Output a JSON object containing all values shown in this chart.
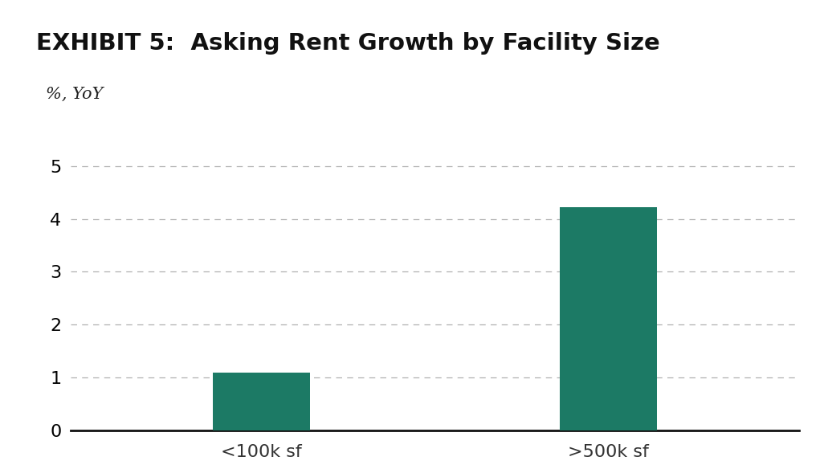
{
  "title": "EXHIBIT 5:  Asking Rent Growth by Facility Size",
  "ylabel": "%, YoY",
  "categories": [
    "<100k sf",
    ">500k sf"
  ],
  "values": [
    1.1,
    4.22
  ],
  "bar_color": "#1c7a65",
  "ylim": [
    0,
    5.5
  ],
  "yticks": [
    0,
    1,
    2,
    3,
    4,
    5
  ],
  "background_color": "#ffffff",
  "title_bg_color": "#d4d4d4",
  "bar_width": 0.28,
  "figsize": [
    10.31,
    5.89
  ],
  "dpi": 100,
  "title_fontsize": 21,
  "tick_fontsize": 16,
  "ylabel_fontsize": 15
}
